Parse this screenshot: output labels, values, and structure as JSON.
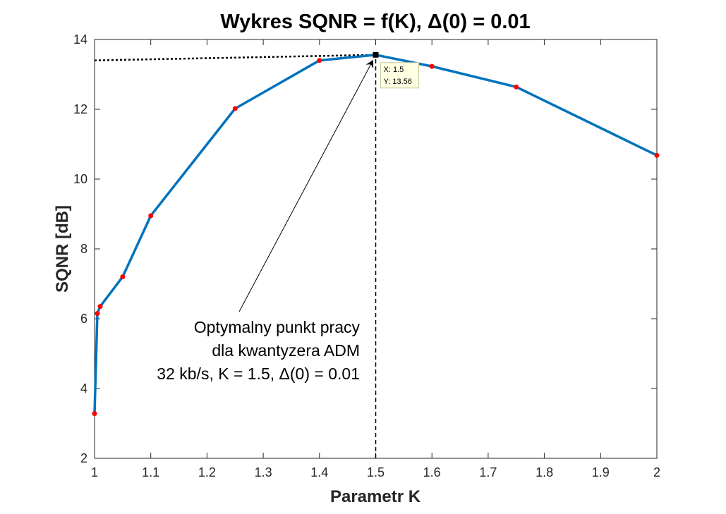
{
  "chart_data": {
    "type": "line",
    "title": "Wykres SQNR = f(K), Δ(0) = 0.01",
    "xlabel": "Parametr K",
    "ylabel": "SQNR [dB]",
    "xlim": [
      1,
      2
    ],
    "ylim": [
      2,
      14
    ],
    "xticks": [
      "1",
      "1.1",
      "1.2",
      "1.3",
      "1.4",
      "1.5",
      "1.6",
      "1.7",
      "1.8",
      "1.9",
      "2"
    ],
    "yticks": [
      "2",
      "4",
      "6",
      "8",
      "10",
      "12",
      "14"
    ],
    "grid": false,
    "series": [
      {
        "color": "#0072BD",
        "marker_color": "#ff0000",
        "x": [
          1.0,
          1.005,
          1.01,
          1.05,
          1.1,
          1.25,
          1.4,
          1.5,
          1.6,
          1.75,
          2.0
        ],
        "y": [
          3.28,
          6.15,
          6.35,
          7.2,
          8.95,
          12.02,
          13.4,
          13.56,
          13.23,
          12.64,
          10.68
        ]
      }
    ],
    "reference_lines": {
      "vertical_x": 1.5,
      "horizontal_from": {
        "x": 1.0,
        "y": 13.4
      },
      "horizontal_to": {
        "x": 1.5,
        "y": 13.56
      }
    },
    "datatip": {
      "x_text": "X: 1.5",
      "y_text": "Y: 13.56",
      "x": 1.5,
      "y": 13.56
    },
    "annotation": {
      "lines": [
        "Optymalny punkt pracy",
        "dla kwantyzera ADM",
        "32 kb/s, K = 1.5, Δ(0) = 0.01"
      ],
      "arrow_target": {
        "x": 1.5,
        "y": 13.56
      }
    }
  }
}
